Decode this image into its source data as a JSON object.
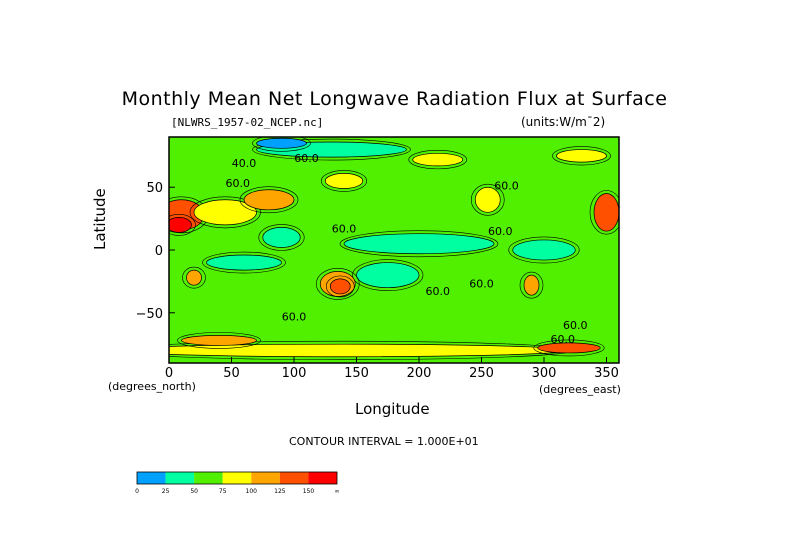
{
  "chart_data": {
    "type": "heatmap",
    "title": "Monthly Mean Net Longwave Radiation Flux at Surface",
    "subtitle": "[NLWRS_1957-02_NCEP.nc]",
    "units": "(units:W/m¯2)",
    "xlabel": "Longitude",
    "ylabel": "Latitude",
    "x_unit_label": "(degrees_east)",
    "y_unit_label": "(degrees_north)",
    "xlim": [
      0,
      360
    ],
    "ylim": [
      -90,
      90
    ],
    "x_ticks": [
      "0",
      "50",
      "100",
      "150",
      "200",
      "250",
      "300",
      "350"
    ],
    "x_tick_values": [
      0,
      50,
      100,
      150,
      200,
      250,
      300,
      350
    ],
    "y_ticks": [
      "50",
      "0",
      "−50"
    ],
    "y_tick_values": [
      50,
      0,
      -50
    ],
    "contour_interval": "CONTOUR INTERVAL = 1.000E+01",
    "contour_labels": [
      {
        "text": "40.0",
        "lon": 60,
        "lat": 66
      },
      {
        "text": "60.0",
        "lon": 110,
        "lat": 70
      },
      {
        "text": "60.0",
        "lon": 270,
        "lat": 48
      },
      {
        "text": "60.0",
        "lon": 265,
        "lat": 12
      },
      {
        "text": "60.0",
        "lon": 140,
        "lat": 14
      },
      {
        "text": "60.0",
        "lon": 215,
        "lat": -36
      },
      {
        "text": "60.0",
        "lon": 250,
        "lat": -30
      },
      {
        "text": "60.0",
        "lon": 100,
        "lat": -56
      },
      {
        "text": "60.0",
        "lon": 325,
        "lat": -63
      },
      {
        "text": "60.0",
        "lon": 315,
        "lat": -74
      },
      {
        "text": "60.0",
        "lon": 55,
        "lat": 50
      }
    ],
    "levels": [
      0,
      25,
      50,
      75,
      100,
      125,
      150
    ],
    "colorbar_labels": [
      "0",
      "25",
      "50",
      "75",
      "100",
      "125",
      "150",
      "∞"
    ],
    "colors": [
      "#00a0ff",
      "#00ffa0",
      "#50f000",
      "#ffff00",
      "#ffa500",
      "#ff5000",
      "#ff0000"
    ],
    "background_level": 50,
    "features": [
      {
        "lon": 200,
        "lat": 5,
        "rx": 60,
        "ry": 8,
        "level": 25
      },
      {
        "lon": 300,
        "lat": 0,
        "rx": 25,
        "ry": 8,
        "level": 25
      },
      {
        "lon": 175,
        "lat": -20,
        "rx": 25,
        "ry": 10,
        "level": 25
      },
      {
        "lon": 60,
        "lat": -10,
        "rx": 30,
        "ry": 6,
        "level": 25
      },
      {
        "lon": 90,
        "lat": 10,
        "rx": 15,
        "ry": 8,
        "level": 25
      },
      {
        "lon": 130,
        "lat": 80,
        "rx": 60,
        "ry": 6,
        "level": 25
      },
      {
        "lon": 90,
        "lat": 85,
        "rx": 20,
        "ry": 4,
        "level": 0
      },
      {
        "lon": 140,
        "lat": -80,
        "rx": 180,
        "ry": 5,
        "level": 75
      },
      {
        "lon": 10,
        "lat": 28,
        "rx": 18,
        "ry": 12,
        "level": 125
      },
      {
        "lon": 8,
        "lat": 20,
        "rx": 10,
        "ry": 6,
        "level": 150
      },
      {
        "lon": 45,
        "lat": 30,
        "rx": 25,
        "ry": 10,
        "level": 75
      },
      {
        "lon": 80,
        "lat": 40,
        "rx": 20,
        "ry": 8,
        "level": 100
      },
      {
        "lon": 135,
        "lat": -27,
        "rx": 14,
        "ry": 10,
        "level": 100
      },
      {
        "lon": 137,
        "lat": -29,
        "rx": 8,
        "ry": 6,
        "level": 125
      },
      {
        "lon": 350,
        "lat": 30,
        "rx": 10,
        "ry": 15,
        "level": 125
      },
      {
        "lon": 255,
        "lat": 40,
        "rx": 10,
        "ry": 10,
        "level": 75
      },
      {
        "lon": 290,
        "lat": -28,
        "rx": 6,
        "ry": 8,
        "level": 100
      },
      {
        "lon": 20,
        "lat": -22,
        "rx": 6,
        "ry": 6,
        "level": 100
      },
      {
        "lon": 140,
        "lat": 55,
        "rx": 15,
        "ry": 6,
        "level": 75
      },
      {
        "lon": 330,
        "lat": 75,
        "rx": 20,
        "ry": 5,
        "level": 75
      },
      {
        "lon": 215,
        "lat": 72,
        "rx": 20,
        "ry": 5,
        "level": 75
      },
      {
        "lon": 40,
        "lat": -72,
        "rx": 30,
        "ry": 4,
        "level": 100
      },
      {
        "lon": 320,
        "lat": -78,
        "rx": 25,
        "ry": 4,
        "level": 125
      }
    ]
  }
}
